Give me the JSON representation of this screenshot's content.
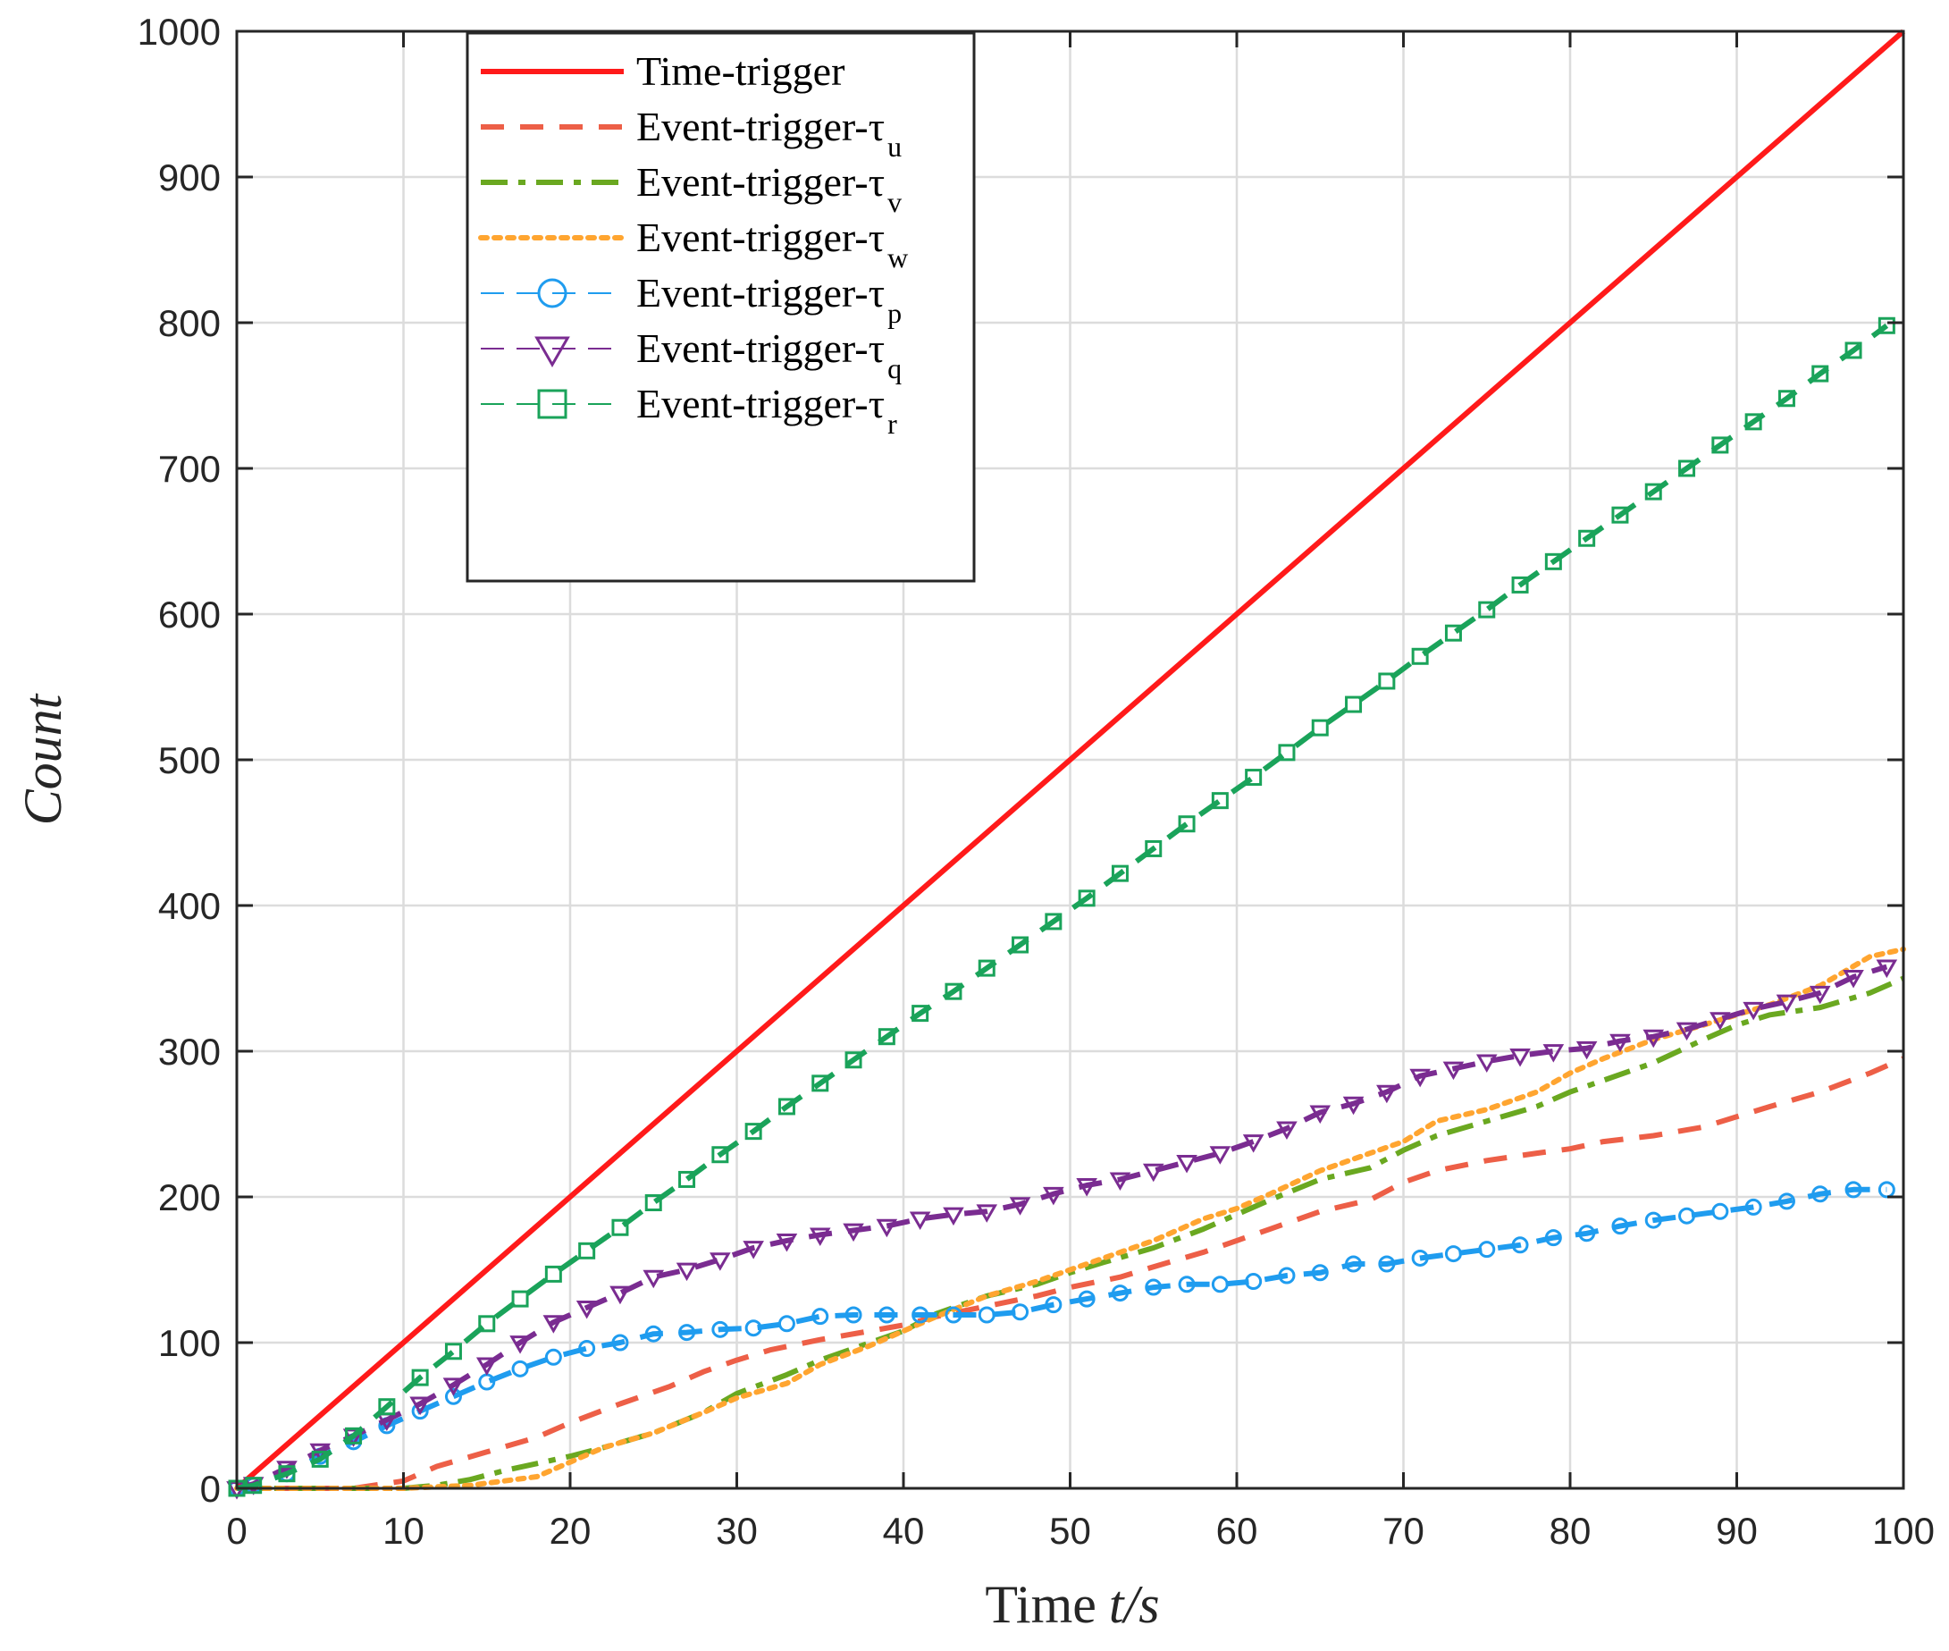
{
  "chart_data": {
    "type": "line",
    "xlabel_text": "Time",
    "xlabel_var": "t/s",
    "ylabel": "Count",
    "xlim": [
      0,
      100
    ],
    "ylim": [
      0,
      1000
    ],
    "xticks": [
      0,
      10,
      20,
      30,
      40,
      50,
      60,
      70,
      80,
      90,
      100
    ],
    "yticks": [
      0,
      100,
      200,
      300,
      400,
      500,
      600,
      700,
      800,
      900,
      1000
    ],
    "xtick_labels": [
      "0",
      "10",
      "20",
      "30",
      "40",
      "50",
      "60",
      "70",
      "80",
      "90",
      "100"
    ],
    "ytick_labels": [
      "0",
      "100",
      "200",
      "300",
      "400",
      "500",
      "600",
      "700",
      "800",
      "900",
      "1000"
    ],
    "grid": true,
    "legend_position": "top-left",
    "series": [
      {
        "name": "Time-trigger",
        "base": "Time-trigger",
        "subscript": "",
        "color": "#ff1a1a",
        "style": "solid",
        "marker": "none",
        "x": [
          0,
          100
        ],
        "y": [
          0,
          1000
        ]
      },
      {
        "name": "Event-trigger-τu",
        "base": "Event-trigger-τ",
        "subscript": "u",
        "color": "#ed5f47",
        "style": "dashed",
        "marker": "none",
        "x": [
          0,
          7,
          10,
          12,
          15,
          18,
          20,
          23,
          26,
          28,
          30,
          32,
          35,
          38,
          40,
          42,
          45,
          48,
          50,
          53,
          55,
          58,
          60,
          62,
          65,
          68,
          70,
          72,
          75,
          78,
          80,
          82,
          85,
          88,
          90,
          92,
          95,
          98,
          100
        ],
        "y": [
          0,
          0,
          5,
          15,
          25,
          35,
          45,
          58,
          70,
          80,
          88,
          95,
          102,
          108,
          112,
          118,
          125,
          132,
          138,
          145,
          152,
          162,
          170,
          178,
          190,
          198,
          210,
          218,
          225,
          230,
          233,
          238,
          242,
          248,
          255,
          262,
          272,
          285,
          295
        ]
      },
      {
        "name": "Event-trigger-τv",
        "base": "Event-trigger-τ",
        "subscript": "v",
        "color": "#6aa820",
        "style": "dashdot",
        "marker": "none",
        "x": [
          0,
          10,
          12,
          14,
          16,
          18,
          20,
          22,
          25,
          28,
          30,
          33,
          35,
          38,
          40,
          42,
          45,
          48,
          50,
          52,
          55,
          58,
          60,
          62,
          65,
          68,
          70,
          72,
          75,
          78,
          80,
          82,
          85,
          88,
          90,
          92,
          95,
          98,
          100
        ],
        "y": [
          0,
          0,
          2,
          6,
          12,
          17,
          22,
          28,
          38,
          52,
          65,
          78,
          88,
          100,
          108,
          120,
          132,
          140,
          148,
          155,
          165,
          178,
          188,
          198,
          212,
          220,
          232,
          242,
          252,
          262,
          272,
          280,
          292,
          308,
          318,
          325,
          330,
          340,
          350
        ]
      },
      {
        "name": "Event-trigger-τw",
        "base": "Event-trigger-τ",
        "subscript": "w",
        "color": "#ffa530",
        "style": "dotted",
        "marker": "none",
        "x": [
          0,
          10,
          14,
          18,
          20,
          22,
          25,
          28,
          30,
          33,
          35,
          38,
          40,
          42,
          45,
          48,
          50,
          52,
          55,
          58,
          60,
          62,
          65,
          68,
          70,
          72,
          75,
          78,
          80,
          82,
          85,
          88,
          90,
          92,
          95,
          98,
          100
        ],
        "y": [
          0,
          0,
          2,
          8,
          18,
          28,
          38,
          52,
          62,
          72,
          85,
          98,
          108,
          118,
          132,
          142,
          150,
          158,
          170,
          185,
          192,
          202,
          218,
          230,
          238,
          252,
          260,
          272,
          285,
          295,
          308,
          318,
          325,
          332,
          345,
          365,
          370
        ]
      },
      {
        "name": "Event-trigger-τp",
        "base": "Event-trigger-τ",
        "subscript": "p",
        "color": "#1f9cef",
        "style": "dashed",
        "marker": "circle",
        "x": [
          0,
          1,
          3,
          5,
          7,
          9,
          11,
          13,
          15,
          17,
          19,
          21,
          23,
          25,
          27,
          29,
          31,
          33,
          35,
          37,
          39,
          41,
          43,
          45,
          47,
          49,
          51,
          53,
          55,
          57,
          59,
          61,
          63,
          65,
          67,
          69,
          71,
          73,
          75,
          77,
          79,
          81,
          83,
          85,
          87,
          89,
          91,
          93,
          95,
          97,
          99
        ],
        "y": [
          0,
          2,
          10,
          22,
          32,
          43,
          53,
          63,
          73,
          82,
          90,
          96,
          100,
          106,
          107,
          109,
          110,
          113,
          118,
          119,
          119,
          119,
          119,
          119,
          121,
          126,
          130,
          134,
          138,
          140,
          140,
          142,
          146,
          148,
          154,
          154,
          158,
          161,
          164,
          167,
          172,
          175,
          180,
          184,
          187,
          190,
          193,
          197,
          202,
          205,
          205
        ]
      },
      {
        "name": "Event-trigger-τq",
        "base": "Event-trigger-τ",
        "subscript": "q",
        "color": "#7a2c91",
        "style": "dashed",
        "marker": "triangle-down",
        "x": [
          0,
          1,
          3,
          5,
          7,
          9,
          11,
          13,
          15,
          17,
          19,
          21,
          23,
          25,
          27,
          29,
          31,
          33,
          35,
          37,
          39,
          41,
          43,
          45,
          47,
          49,
          51,
          53,
          55,
          57,
          59,
          61,
          63,
          65,
          67,
          69,
          71,
          73,
          75,
          77,
          79,
          81,
          83,
          85,
          87,
          89,
          91,
          93,
          95,
          97,
          99
        ],
        "y": [
          0,
          3,
          14,
          26,
          36,
          47,
          58,
          71,
          85,
          100,
          114,
          124,
          134,
          145,
          150,
          157,
          165,
          170,
          174,
          177,
          180,
          185,
          188,
          190,
          195,
          202,
          208,
          212,
          218,
          224,
          230,
          238,
          247,
          258,
          264,
          272,
          283,
          288,
          293,
          297,
          300,
          302,
          307,
          310,
          315,
          322,
          329,
          334,
          340,
          351,
          358
        ]
      },
      {
        "name": "Event-trigger-τr",
        "base": "Event-trigger-τ",
        "subscript": "r",
        "color": "#1aa35a",
        "style": "dashed",
        "marker": "square",
        "x": [
          0,
          1,
          3,
          5,
          7,
          9,
          11,
          13,
          15,
          17,
          19,
          21,
          23,
          25,
          27,
          29,
          31,
          33,
          35,
          37,
          39,
          41,
          43,
          45,
          47,
          49,
          51,
          53,
          55,
          57,
          59,
          61,
          63,
          65,
          67,
          69,
          71,
          73,
          75,
          77,
          79,
          81,
          83,
          85,
          87,
          89,
          91,
          93,
          95,
          97,
          99
        ],
        "y": [
          0,
          2,
          10,
          20,
          36,
          56,
          76,
          94,
          113,
          130,
          147,
          163,
          179,
          196,
          212,
          229,
          245,
          262,
          278,
          294,
          310,
          326,
          341,
          357,
          373,
          389,
          405,
          422,
          439,
          456,
          472,
          488,
          505,
          522,
          538,
          554,
          571,
          587,
          603,
          620,
          636,
          652,
          668,
          684,
          700,
          716,
          732,
          748,
          765,
          781,
          798
        ]
      }
    ]
  }
}
